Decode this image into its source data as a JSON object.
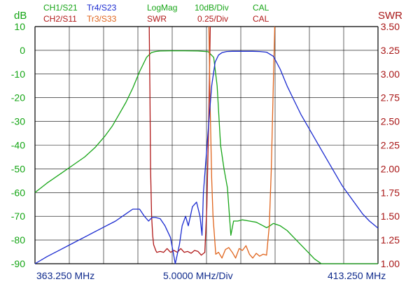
{
  "colors": {
    "ch1": "#17a517",
    "ch2": "#b01818",
    "tr3": "#e0641c",
    "tr4": "#1a2ad0",
    "left_axis": "#14a514",
    "right_axis": "#a81616",
    "freq_text": "#0f2a8c",
    "grid": "#000000"
  },
  "chart_data": {
    "type": "line",
    "header": {
      "ch1_name": "CH1/S21",
      "ch2_name": "CH2/S11",
      "tr4_name": "Tr4/S23",
      "tr3_name": "Tr3/S33",
      "format_1": "LogMag",
      "format_2": "SWR",
      "scale_1": "10dB/Div",
      "scale_2": "0.25/Div",
      "cal_1": "CAL",
      "cal_2": "CAL"
    },
    "left_axis": {
      "label": "dB",
      "ylim": [
        -90,
        10
      ],
      "ticks": [
        "10",
        "0",
        "-10",
        "-20",
        "-30",
        "-40",
        "-50",
        "-60",
        "-70",
        "-80",
        "-90"
      ]
    },
    "right_axis": {
      "label": "SWR",
      "ylim": [
        1.0,
        3.5
      ],
      "ticks": [
        "3.50",
        "3.25",
        "3.00",
        "2.75",
        "2.50",
        "2.25",
        "2.00",
        "1.75",
        "1.50",
        "1.25",
        "1.00"
      ]
    },
    "x_axis": {
      "start_label": "363.250 MHz",
      "center_label": "5.0000 MHz/Div",
      "stop_label": "413.250 MHz",
      "xlim": [
        363.25,
        413.25
      ]
    },
    "grid": true,
    "series": [
      {
        "name": "CH1/S21",
        "axis": "left",
        "x": [
          363.25,
          365,
          367,
          369,
          370.5,
          372,
          373.5,
          374.5,
          375.5,
          376.5,
          377.5,
          378.5,
          379.5,
          380.2,
          380.8,
          381.5,
          383,
          385,
          387,
          388.5,
          389.3,
          389.8,
          390.3,
          390.8,
          391.3,
          391.8,
          392.2,
          392.8,
          393.5,
          394.5,
          395.5,
          396.5,
          397,
          397.5,
          398,
          399,
          400,
          401,
          402,
          403,
          404,
          405,
          406,
          407,
          409,
          413.25
        ],
        "values": [
          -60,
          -56,
          -52,
          -48,
          -45,
          -41,
          -36,
          -32,
          -27,
          -22,
          -16,
          -9,
          -3,
          -1,
          -0.5,
          -0.3,
          -0.2,
          -0.2,
          -0.3,
          -0.6,
          -3,
          -15,
          -40,
          -50,
          -58,
          -78,
          -72,
          -72,
          -71.5,
          -72,
          -72.5,
          -74,
          -74.8,
          -74,
          -73,
          -74,
          -76,
          -79,
          -82,
          -85,
          -88,
          -90,
          -90,
          -90,
          -90,
          -90
        ]
      },
      {
        "name": "CH2/S11",
        "axis": "right",
        "x": [
          379.9,
          380.0,
          380.1,
          380.25,
          380.4,
          380.55,
          380.7,
          380.85,
          381.0,
          381.5,
          382,
          382.5,
          383,
          383.5,
          384,
          384.5,
          385,
          385.5,
          386,
          386.5,
          387,
          387.5,
          388,
          388.3,
          388.6,
          388.8
        ],
        "values": [
          3.5,
          2.8,
          2.0,
          1.5,
          1.3,
          1.2,
          1.17,
          1.14,
          1.12,
          1.13,
          1.12,
          1.16,
          1.12,
          1.14,
          1.12,
          1.16,
          1.12,
          1.13,
          1.11,
          1.14,
          1.13,
          1.09,
          1.12,
          1.6,
          2.6,
          3.5
        ]
      },
      {
        "name": "Tr3/S33",
        "axis": "right",
        "x": [
          388.6,
          388.8,
          389.0,
          389.2,
          389.4,
          389.6,
          390.0,
          390.5,
          391,
          391.5,
          392,
          392.5,
          393,
          393.5,
          394,
          394.5,
          395,
          395.5,
          396,
          396.5,
          397.0,
          397.4,
          397.7,
          398.0,
          398.2
        ],
        "values": [
          3.5,
          2.6,
          1.9,
          1.5,
          1.3,
          1.1,
          1.12,
          1.06,
          1.15,
          1.17,
          1.12,
          1.06,
          1.16,
          1.14,
          1.19,
          1.1,
          1.06,
          1.11,
          1.08,
          1.1,
          1.09,
          1.4,
          2.0,
          2.9,
          3.5
        ]
      },
      {
        "name": "Tr4/S23",
        "axis": "left",
        "x": [
          363.25,
          365,
          367,
          369,
          371,
          373,
          375,
          376.5,
          377.5,
          378.5,
          379.2,
          379.8,
          380.3,
          380.8,
          381.5,
          382.2,
          383,
          383.7,
          384.3,
          384.7,
          385.2,
          385.6,
          386.2,
          386.8,
          387.3,
          387.6,
          387.8,
          388.2,
          388.6,
          389.0,
          389.5,
          390.0,
          390.5,
          391.2,
          392,
          393,
          394,
          395,
          396,
          397,
          398,
          399,
          400,
          401,
          402,
          403,
          404,
          405,
          406,
          407,
          408,
          409,
          410,
          411,
          412,
          413.25
        ],
        "values": [
          -90,
          -87,
          -84,
          -81,
          -78,
          -75,
          -72,
          -69,
          -67,
          -67,
          -70,
          -72,
          -70.5,
          -70.5,
          -71,
          -74,
          -79,
          -90,
          -82,
          -74,
          -70,
          -74,
          -66,
          -64,
          -70,
          -78,
          -60,
          -45,
          -30,
          -15,
          -5,
          -2,
          -1,
          -0.5,
          -0.4,
          -0.4,
          -0.4,
          -0.4,
          -0.5,
          -0.8,
          -2.5,
          -8,
          -15,
          -21,
          -27,
          -32,
          -37,
          -42,
          -47,
          -52,
          -57,
          -61,
          -65,
          -69,
          -72,
          -75
        ]
      }
    ]
  }
}
